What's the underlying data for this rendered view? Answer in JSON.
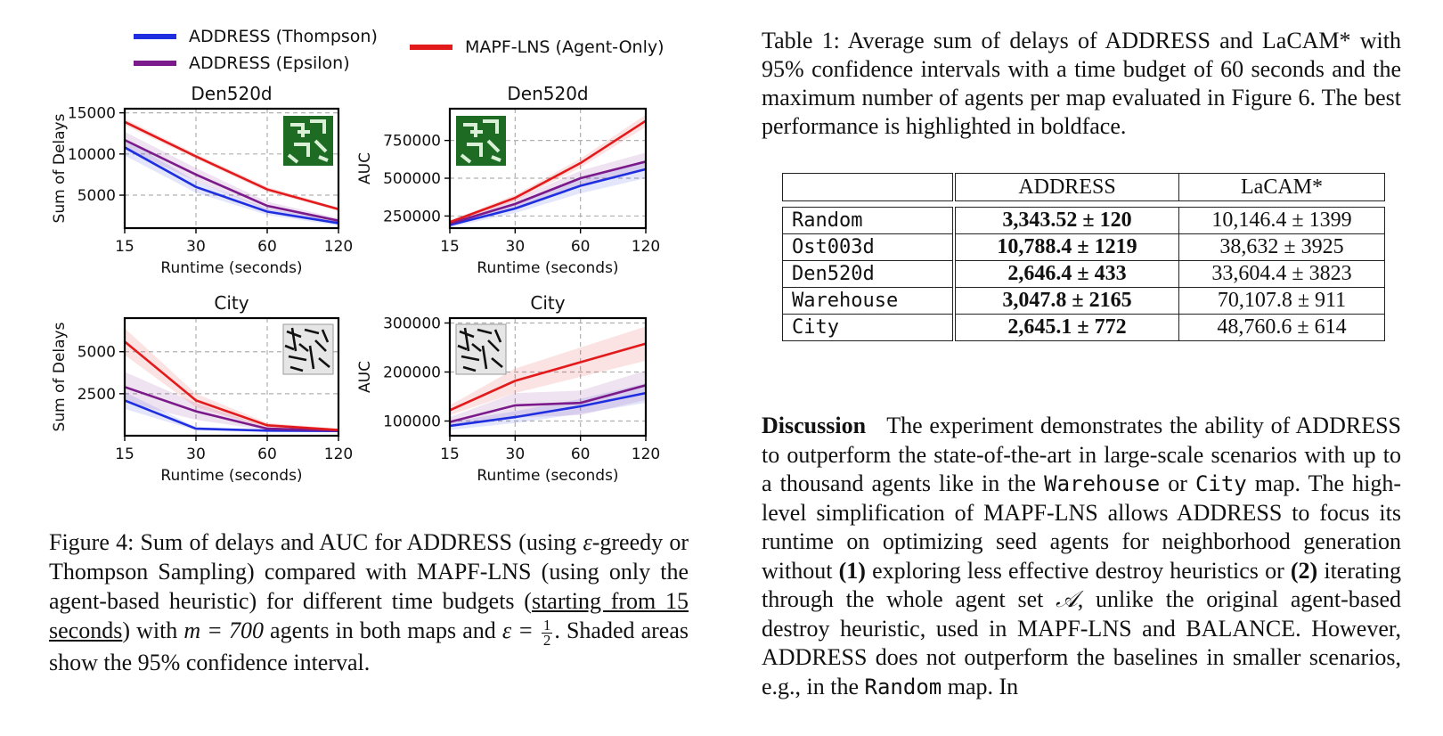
{
  "legend": {
    "items": [
      {
        "label": "ADDRESS (Thompson)",
        "color": "#1f2fe0"
      },
      {
        "label": "ADDRESS (Epsilon)",
        "color": "#7b1a8a"
      },
      {
        "label": "MAPF-LNS (Agent-Only)",
        "color": "#e31a1c"
      }
    ]
  },
  "colors": {
    "thompson": "#1f2fe0",
    "epsilon": "#7b1a8a",
    "mapflns": "#e31a1c"
  },
  "chart_data": [
    {
      "type": "line",
      "title": "Den520d",
      "xlabel": "Runtime (seconds)",
      "ylabel": "Sum of Delays",
      "x": [
        15,
        30,
        60,
        120
      ],
      "x_scale": "log2",
      "xticks": [
        "15",
        "30",
        "60",
        "120"
      ],
      "yticks": [
        "5000",
        "10000",
        "15000"
      ],
      "ytick_values": [
        5000,
        10000,
        15000
      ],
      "ylim": [
        1000,
        15500
      ],
      "grid": true,
      "inset": "den520d-map",
      "series": [
        {
          "name": "ADDRESS (Thompson)",
          "values": [
            10800,
            6000,
            3000,
            1600
          ],
          "ci": [
            1000,
            700,
            400,
            300
          ]
        },
        {
          "name": "ADDRESS (Epsilon)",
          "values": [
            11700,
            7500,
            3700,
            1900
          ],
          "ci": [
            1000,
            800,
            500,
            300
          ]
        },
        {
          "name": "MAPF-LNS (Agent-Only)",
          "values": [
            13900,
            9700,
            5700,
            3300
          ],
          "ci": [
            400,
            300,
            300,
            200
          ]
        }
      ]
    },
    {
      "type": "line",
      "title": "Den520d",
      "xlabel": "Runtime (seconds)",
      "ylabel": "AUC",
      "x": [
        15,
        30,
        60,
        120
      ],
      "x_scale": "log2",
      "xticks": [
        "15",
        "30",
        "60",
        "120"
      ],
      "yticks": [
        "250000",
        "500000",
        "750000"
      ],
      "ytick_values": [
        250000,
        500000,
        750000
      ],
      "ylim": [
        170000,
        960000
      ],
      "grid": true,
      "inset": "den520d-map",
      "series": [
        {
          "name": "ADDRESS (Thompson)",
          "values": [
            190000,
            300000,
            450000,
            560000
          ],
          "ci": [
            15000,
            30000,
            50000,
            60000
          ]
        },
        {
          "name": "ADDRESS (Epsilon)",
          "values": [
            200000,
            330000,
            500000,
            610000
          ],
          "ci": [
            15000,
            30000,
            50000,
            60000
          ]
        },
        {
          "name": "MAPF-LNS (Agent-Only)",
          "values": [
            210000,
            370000,
            600000,
            880000
          ],
          "ci": [
            10000,
            20000,
            30000,
            40000
          ]
        }
      ]
    },
    {
      "type": "line",
      "title": "City",
      "xlabel": "Runtime (seconds)",
      "ylabel": "Sum of Delays",
      "x": [
        15,
        30,
        60,
        120
      ],
      "x_scale": "log2",
      "xticks": [
        "15",
        "30",
        "60",
        "120"
      ],
      "yticks": [
        "2500",
        "5000"
      ],
      "ytick_values": [
        2500,
        5000
      ],
      "ylim": [
        0,
        7000
      ],
      "grid": true,
      "inset": "city-map",
      "series": [
        {
          "name": "ADDRESS (Thompson)",
          "values": [
            2100,
            420,
            300,
            280
          ],
          "ci": [
            500,
            100,
            50,
            50
          ]
        },
        {
          "name": "ADDRESS (Epsilon)",
          "values": [
            2900,
            1450,
            420,
            300
          ],
          "ci": [
            900,
            500,
            100,
            50
          ]
        },
        {
          "name": "MAPF-LNS (Agent-Only)",
          "values": [
            5600,
            2100,
            620,
            340
          ],
          "ci": [
            800,
            400,
            150,
            80
          ]
        }
      ]
    },
    {
      "type": "line",
      "title": "City",
      "xlabel": "Runtime (seconds)",
      "ylabel": "AUC",
      "x": [
        15,
        30,
        60,
        120
      ],
      "x_scale": "log2",
      "xticks": [
        "15",
        "30",
        "60",
        "120"
      ],
      "yticks": [
        "100000",
        "200000",
        "300000"
      ],
      "ytick_values": [
        100000,
        200000,
        300000
      ],
      "ylim": [
        70000,
        310000
      ],
      "grid": true,
      "inset": "city-map",
      "series": [
        {
          "name": "ADDRESS (Thompson)",
          "values": [
            90000,
            108000,
            130000,
            157000
          ],
          "ci": [
            8000,
            12000,
            15000,
            20000
          ]
        },
        {
          "name": "ADDRESS (Epsilon)",
          "values": [
            98000,
            132000,
            137000,
            173000
          ],
          "ci": [
            10000,
            25000,
            25000,
            30000
          ]
        },
        {
          "name": "MAPF-LNS (Agent-Only)",
          "values": [
            122000,
            182000,
            220000,
            258000
          ],
          "ci": [
            10000,
            25000,
            30000,
            35000
          ]
        }
      ]
    }
  ],
  "figure_caption": {
    "part1": "Figure 4: Sum of delays and AUC for ADDRESS (using ",
    "eps1": "ε",
    "part2": "-greedy or Thompson Sampling) compared with MAPF-LNS (using only the agent-based heuristic) for different time budgets (",
    "underlined": "starting from 15 seconds",
    "part3": ") with ",
    "m_eq": "m = 700",
    "part4": " agents in both maps and ",
    "eps_eq": "ε = ",
    "frac_num": "1",
    "frac_den": "2",
    "part5": ". Shaded areas show the 95% confidence interval."
  },
  "table_caption": "Table 1: Average sum of delays of ADDRESS and LaCAM* with 95% confidence intervals with a time budget of 60 seconds and the maximum number of agents per map evaluated in Figure 6. The best performance is highlighted in boldface.",
  "table": {
    "headers": [
      "",
      "ADDRESS",
      "LaCAM*"
    ],
    "rows": [
      {
        "map": "Random",
        "address": "3,343.52 ± 120",
        "lacam": "10,146.4 ± 1399"
      },
      {
        "map": "Ost003d",
        "address": "10,788.4 ± 1219",
        "lacam": "38,632 ± 3925"
      },
      {
        "map": "Den520d",
        "address": "2,646.4 ± 433",
        "lacam": "33,604.4 ± 3823"
      },
      {
        "map": "Warehouse",
        "address": "3,047.8 ± 2165",
        "lacam": "70,107.8 ± 911"
      },
      {
        "map": "City",
        "address": "2,645.1 ± 772",
        "lacam": "48,760.6 ± 614"
      }
    ]
  },
  "discussion": {
    "heading": "Discussion",
    "t1": "The experiment demonstrates the ability of ADDRESS to outperform the state-of-the-art in large-scale scenarios with up to a thousand agents like in the ",
    "warehouse": "Warehouse",
    "t2": " or ",
    "city": "City",
    "t3": " map. The high-level simplification of MAPF-LNS allows ADDRESS to focus its runtime on optimizing seed agents for neighborhood generation without ",
    "b1": "(1)",
    "t4": " exploring less effective destroy heuristics or ",
    "b2": "(2)",
    "t5": " iterating through the whole agent set ",
    "setA": "𝒜",
    "t6": ", unlike the original agent-based destroy heuristic, used in MAPF-LNS and BALANCE. However, ADDRESS does not outperform the baselines in smaller scenarios, e.g., in the ",
    "random": "Random",
    "t7": " map. In"
  }
}
